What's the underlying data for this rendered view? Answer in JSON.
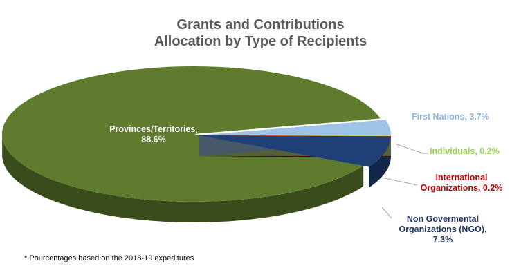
{
  "chart_data": {
    "type": "pie",
    "title": "Grants and Contributions",
    "subtitle": "Allocation by Type of Recipients",
    "slices": [
      {
        "label": "Provinces/Territories,",
        "value_label": "88.6%",
        "value": 88.6,
        "color": "#5f7b2d",
        "label_color": "#ffffff"
      },
      {
        "label": "First Nations,",
        "value_label": "3.7%",
        "value": 3.7,
        "color": "#9dc3e6",
        "label_color": "#8db4e2"
      },
      {
        "label": "Individuals,",
        "value_label": "0.2%",
        "value": 0.2,
        "color": "#b8d680",
        "label_color": "#92d050"
      },
      {
        "label": "International Organizations,",
        "value_label": "0.2%",
        "value": 0.2,
        "color": "#c00000",
        "label_color": "#c00000"
      },
      {
        "label": "Non Govermental Organizations (NGO),",
        "value_label": "7.3%",
        "value": 7.3,
        "color": "#1f3f77",
        "label_color": "#1f3864"
      }
    ]
  },
  "footnote": "* Pourcentages based on the 2018-19 expeditures"
}
